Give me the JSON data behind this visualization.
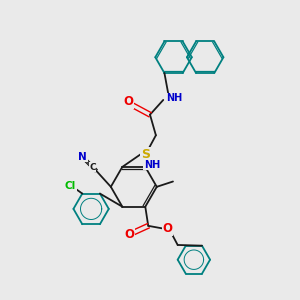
{
  "bg_color": "#eaeaea",
  "bond_color": "#1a1a1a",
  "atom_colors": {
    "N": "#0000cc",
    "O": "#ee0000",
    "S": "#ccaa00",
    "Cl": "#00bb00",
    "C": "#1a1a1a",
    "teal": "#008080"
  },
  "font_size": 7.0
}
